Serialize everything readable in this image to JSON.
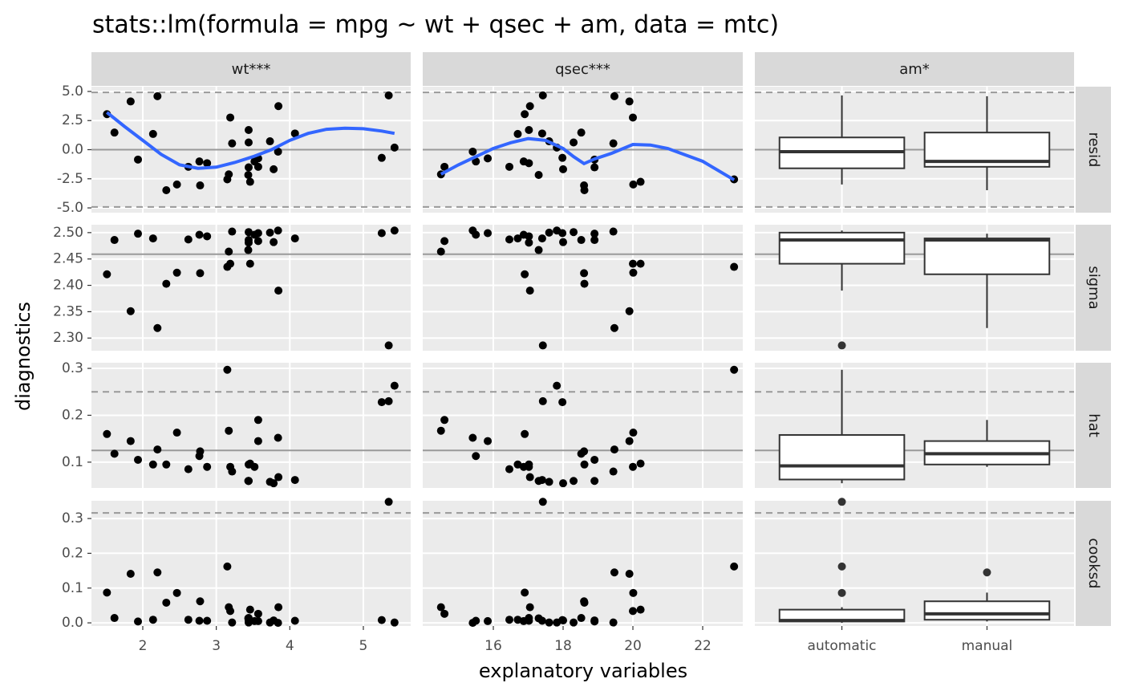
{
  "chart_data": {
    "type": "facet-grid",
    "title": "stats::lm(formula = mpg ~ wt + qsec + am, data = mtc)",
    "xlabel": "explanatory variables",
    "ylabel": "diagnostics",
    "point_color": "#000000",
    "smooth_color": "#3366ff",
    "grid": true,
    "rows": [
      {
        "label": "resid",
        "values": [
          -1.47,
          -1.16,
          -3.48,
          0.54,
          1.69,
          -2.76,
          -0.75,
          2.76,
          -2.55,
          0.62,
          -1.52,
          1.39,
          0.72,
          -1.68,
          -0.7,
          0.18,
          4.66,
          4.59,
          1.47,
          4.14,
          -2.99,
          -1.01,
          -2.17,
          -0.17,
          3.74,
          -0.85,
          1.35,
          3.05,
          -2.12,
          -1.01,
          -1.47,
          -3.07
        ],
        "ylim": [
          -5.41,
          5.41
        ],
        "yticks": [
          {
            "value": -5,
            "label": "-5.0"
          },
          {
            "value": -2.5,
            "label": "-2.5"
          },
          {
            "value": 0,
            "label": "0.0"
          },
          {
            "value": 2.5,
            "label": "2.5"
          },
          {
            "value": 5,
            "label": "5.0"
          }
        ],
        "hline": 0,
        "dashed": [
          -4.92,
          4.92
        ]
      },
      {
        "label": "sigma",
        "values": [
          2.487,
          2.493,
          2.403,
          2.502,
          2.481,
          2.441,
          2.499,
          2.441,
          2.435,
          2.501,
          2.486,
          2.489,
          2.5,
          2.482,
          2.499,
          2.504,
          2.286,
          2.319,
          2.486,
          2.351,
          2.424,
          2.496,
          2.467,
          2.504,
          2.39,
          2.498,
          2.489,
          2.421,
          2.464,
          2.496,
          2.484,
          2.423
        ],
        "ylim": [
          2.276,
          2.515
        ],
        "yticks": [
          {
            "value": 2.3,
            "label": "2.30"
          },
          2.35,
          {
            "value": 2.4,
            "label": "2.40"
          },
          2.45,
          {
            "value": 2.5,
            "label": "2.50"
          }
        ],
        "hline": 2.459
      },
      {
        "label": "hat",
        "values": [
          0.085,
          0.09,
          0.095,
          0.08,
          0.095,
          0.097,
          0.145,
          0.09,
          0.297,
          0.06,
          0.06,
          0.062,
          0.058,
          0.055,
          0.228,
          0.263,
          0.23,
          0.127,
          0.118,
          0.145,
          0.163,
          0.09,
          0.06,
          0.152,
          0.068,
          0.105,
          0.095,
          0.16,
          0.167,
          0.113,
          0.19,
          0.123
        ],
        "ylim": [
          0.045,
          0.312
        ],
        "yticks": [
          0.1,
          0.2,
          0.3
        ],
        "hline": 0.125,
        "dashed": [
          0.25
        ]
      },
      {
        "label": "cooksd",
        "values": [
          0.009,
          0.006,
          0.058,
          0.001,
          0.014,
          0.038,
          0.005,
          0.034,
          0.162,
          0.001,
          0.007,
          0.006,
          0.001,
          0.007,
          0.008,
          0.001,
          0.348,
          0.145,
          0.014,
          0.141,
          0.086,
          0.005,
          0.013,
          0,
          0.045,
          0.004,
          0.009,
          0.087,
          0.045,
          0.006,
          0.026,
          0.062
        ],
        "ylim": [
          -0.009,
          0.351
        ],
        "yticks": [
          {
            "value": 0,
            "label": "0.0"
          },
          0.1,
          0.2,
          0.3
        ],
        "dashed": [
          0.316
        ]
      }
    ],
    "columns": [
      {
        "label": "wt***",
        "type": "scatter",
        "x": [
          2.62,
          2.875,
          2.32,
          3.215,
          3.44,
          3.46,
          3.57,
          3.19,
          3.15,
          3.44,
          3.44,
          4.07,
          3.73,
          3.78,
          5.25,
          5.424,
          5.345,
          2.2,
          1.615,
          1.835,
          2.465,
          3.52,
          3.435,
          3.84,
          3.845,
          1.935,
          2.14,
          1.513,
          3.17,
          2.77,
          3.57,
          2.78
        ],
        "xlim": [
          1.302,
          5.644
        ],
        "xticks": [
          2,
          3,
          4,
          5
        ],
        "smooth": {
          "x": [
            1.513,
            1.75,
            2.0,
            2.25,
            2.5,
            2.75,
            3.0,
            3.25,
            3.5,
            3.75,
            4.0,
            4.25,
            4.5,
            4.75,
            5.0,
            5.25,
            5.424
          ],
          "y": [
            3.2,
            2.0,
            0.8,
            -0.4,
            -1.3,
            -1.6,
            -1.5,
            -1.1,
            -0.6,
            0,
            0.8,
            1.4,
            1.75,
            1.85,
            1.8,
            1.6,
            1.4
          ]
        }
      },
      {
        "label": "qsec***",
        "type": "scatter",
        "x": [
          16.46,
          17.02,
          18.61,
          19.44,
          17.02,
          20.22,
          15.84,
          20,
          22.9,
          18.3,
          18.9,
          17.4,
          17.6,
          18,
          17.98,
          17.82,
          17.42,
          19.47,
          18.52,
          19.9,
          20.01,
          16.87,
          17.3,
          15.41,
          17.05,
          18.9,
          16.7,
          16.9,
          14.5,
          15.5,
          14.6,
          18.6
        ],
        "xlim": [
          13.977,
          23.149
        ],
        "xticks": [
          16,
          18,
          20,
          22
        ],
        "smooth": {
          "x": [
            14.5,
            15.0,
            15.5,
            16,
            16.5,
            17,
            17.5,
            18,
            18.3,
            18.6,
            18.9,
            19.4,
            20,
            20.5,
            21,
            22,
            22.9
          ],
          "y": [
            -2.1,
            -1.3,
            -0.6,
            0.1,
            0.6,
            0.95,
            0.8,
            0.1,
            -0.6,
            -1.2,
            -0.8,
            -0.3,
            0.45,
            0.4,
            0.1,
            -1.0,
            -2.6
          ]
        }
      },
      {
        "label": "am*",
        "type": "box",
        "categories": [
          "automatic",
          "manual"
        ],
        "boxes": [
          [
            {
              "whislo": -2.99,
              "q1": -1.6,
              "med": -0.17,
              "q3": 1.05,
              "whishi": 4.66
            },
            {
              "whislo": -3.48,
              "q1": -1.47,
              "med": -1.01,
              "q3": 1.47,
              "whishi": 4.59
            }
          ],
          [
            {
              "whislo": 2.39,
              "q1": 2.441,
              "med": 2.486,
              "q3": 2.5,
              "whishi": 2.504,
              "outliers": [
                2.286
              ]
            },
            {
              "whislo": 2.319,
              "q1": 2.421,
              "med": 2.486,
              "q3": 2.489,
              "whishi": 2.498
            }
          ],
          [
            {
              "whislo": 0.055,
              "q1": 0.063,
              "med": 0.092,
              "q3": 0.158,
              "whishi": 0.297
            },
            {
              "whislo": 0.09,
              "q1": 0.095,
              "med": 0.118,
              "q3": 0.145,
              "whishi": 0.19
            }
          ],
          [
            {
              "whislo": 0,
              "q1": 0.004,
              "med": 0.007,
              "q3": 0.038,
              "whishi": 0.045,
              "outliers": [
                0.086,
                0.162,
                0.348
              ]
            },
            {
              "whislo": 0.004,
              "q1": 0.009,
              "med": 0.026,
              "q3": 0.062,
              "whishi": 0.087,
              "outliers": [
                0.145
              ]
            }
          ]
        ]
      }
    ]
  }
}
